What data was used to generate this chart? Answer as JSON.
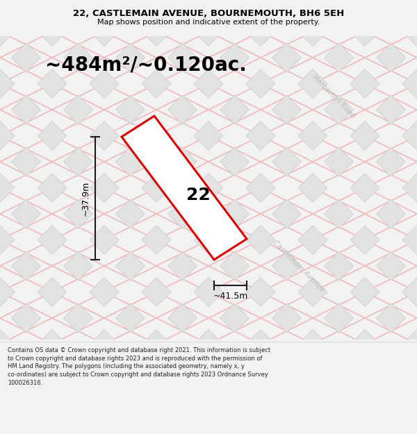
{
  "title_line1": "22, CASTLEMAIN AVENUE, BOURNEMOUTH, BH6 5EH",
  "title_line2": "Map shows position and indicative extent of the property.",
  "area_text": "~484m²/~0.120ac.",
  "label_number": "22",
  "dim_width": "~41.5m",
  "dim_height": "~37.9m",
  "road_label_1": "Herberton Road",
  "road_label_2": "Castlemain Avenue",
  "footer_text": "Contains OS data © Crown copyright and database right 2021. This information is subject to Crown copyright and database rights 2023 and is reproduced with the permission of HM Land Registry. The polygons (including the associated geometry, namely x, y co-ordinates) are subject to Crown copyright and database rights 2023 Ordnance Survey 100026316.",
  "bg_color": "#f2f2f2",
  "map_bg": "#ebebeb",
  "tile_fill": "#e2e2e2",
  "tile_edge": "#d0d0d0",
  "road_line_color": "#f0b8b8",
  "property_color": "#dd0000",
  "property_fill": "#ffffff",
  "dim_line_color": "#1a1a1a",
  "title_bg": "#ffffff",
  "footer_bg": "#ffffff",
  "road_label_color": "#bbbbbb",
  "area_text_size": 20,
  "title_size": 9.5,
  "subtitle_size": 8,
  "footer_size": 6.0,
  "label_size": 18,
  "dim_text_size": 9,
  "road_label_size": 7.5
}
